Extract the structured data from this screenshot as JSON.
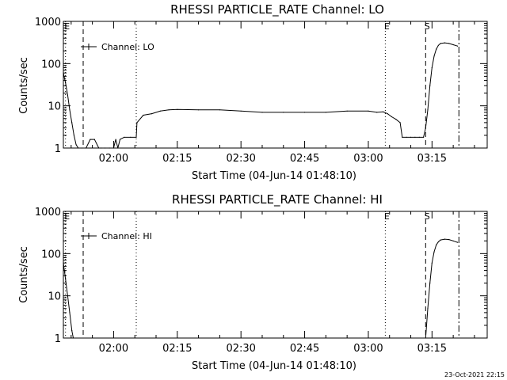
{
  "chart_data": [
    {
      "type": "line",
      "title": "RHESSI PARTICLE_RATE Channel: LO",
      "xlabel": "Start Time (04-Jun-14 01:48:10)",
      "ylabel": "Counts/sec",
      "ylog": true,
      "ylim": [
        1,
        1000
      ],
      "yticks": [
        "1",
        "10",
        "100",
        "1000"
      ],
      "xlim": [
        "01:48:10",
        "03:28:00"
      ],
      "xticks": [
        "02:00",
        "02:15",
        "02:30",
        "02:45",
        "03:00",
        "03:15"
      ],
      "legend": {
        "label": "Channel: LO",
        "position": "top-left"
      },
      "markers": [
        {
          "label": "E",
          "time": "01:48:40",
          "style": "dotted"
        },
        {
          "label": "",
          "time": "01:52:50",
          "style": "dashed"
        },
        {
          "label": "",
          "time": "02:05:20",
          "style": "dotted"
        },
        {
          "label": "E",
          "time": "03:04:00",
          "style": "dotted"
        },
        {
          "label": "S",
          "time": "03:13:30",
          "style": "dashed"
        },
        {
          "label": "",
          "time": "03:21:20",
          "style": "dashdot"
        }
      ],
      "series": [
        {
          "x": [
            "01:48:10",
            "01:48:40",
            "01:49:10",
            "01:49:40",
            "01:50:10",
            "01:50:40",
            "01:51:10",
            "01:51:40",
            "01:52:30",
            "01:53:30",
            "01:54:30",
            "01:55:30",
            "01:56:30",
            "01:57:00",
            "01:58:00",
            "01:59:00",
            "02:00:00",
            "02:00:30",
            "02:01:00",
            "02:01:30",
            "02:02:30",
            "02:04:00",
            "02:05:20",
            "02:05:30",
            "02:07:00",
            "02:09:00",
            "02:11:00",
            "02:13:00",
            "02:15:00",
            "02:20:00",
            "02:25:00",
            "02:30:00",
            "02:35:00",
            "02:40:00",
            "02:45:00",
            "02:50:00",
            "02:55:00",
            "03:00:00",
            "03:02:00",
            "03:03:30",
            "03:04:30",
            "03:05:30",
            "03:06:30",
            "03:07:30",
            "03:08:00",
            "03:09:00",
            "03:10:00",
            "03:11:00",
            "03:12:00",
            "03:13:00",
            "03:13:30",
            "03:14:00",
            "03:14:30",
            "03:15:00",
            "03:15:30",
            "03:16:00",
            "03:16:30",
            "03:17:00",
            "03:18:00",
            "03:19:00",
            "03:20:00",
            "03:21:00"
          ],
          "values": [
            60,
            35,
            18,
            8,
            4,
            2,
            1.2,
            1,
            1,
            1,
            1.6,
            1.6,
            1,
            1,
            1,
            1,
            1,
            1.6,
            1,
            1.6,
            1.8,
            1.8,
            1.8,
            4,
            6,
            6.5,
            7.5,
            8,
            8.2,
            8,
            8,
            7.5,
            7,
            7,
            7,
            7,
            7.5,
            7.5,
            7,
            7.2,
            6.5,
            5.5,
            4.8,
            4,
            1.8,
            1.8,
            1.8,
            1.8,
            1.8,
            1.8,
            3,
            8,
            30,
            80,
            150,
            220,
            270,
            300,
            310,
            300,
            280,
            260
          ]
        }
      ]
    },
    {
      "type": "line",
      "title": "RHESSI PARTICLE_RATE Channel: HI",
      "xlabel": "Start Time (04-Jun-14 01:48:10)",
      "ylabel": "Counts/sec",
      "ylog": true,
      "ylim": [
        1,
        1000
      ],
      "yticks": [
        "1",
        "10",
        "100",
        "1000"
      ],
      "xlim": [
        "01:48:10",
        "03:28:00"
      ],
      "xticks": [
        "02:00",
        "02:15",
        "02:30",
        "02:45",
        "03:00",
        "03:15"
      ],
      "legend": {
        "label": "Channel: HI",
        "position": "top-left"
      },
      "markers": [
        {
          "label": "E",
          "time": "01:48:40",
          "style": "dotted"
        },
        {
          "label": "",
          "time": "01:52:50",
          "style": "dashed"
        },
        {
          "label": "",
          "time": "02:05:20",
          "style": "dotted"
        },
        {
          "label": "E",
          "time": "03:04:00",
          "style": "dotted"
        },
        {
          "label": "S",
          "time": "03:13:30",
          "style": "dashed"
        },
        {
          "label": "",
          "time": "03:21:20",
          "style": "dashdot"
        }
      ],
      "series": [
        {
          "x": [
            "01:48:10",
            "01:48:40",
            "01:49:10",
            "01:49:40",
            "01:50:10",
            "01:50:30",
            "03:13:30",
            "03:14:00",
            "03:14:30",
            "03:15:00",
            "03:15:30",
            "03:16:00",
            "03:16:30",
            "03:17:00",
            "03:18:00",
            "03:19:00",
            "03:20:00",
            "03:21:00"
          ],
          "values": [
            60,
            25,
            10,
            4,
            1.5,
            1,
            1,
            5,
            20,
            60,
            110,
            160,
            190,
            210,
            220,
            215,
            200,
            185
          ]
        }
      ]
    }
  ],
  "footer": {
    "timestamp": "23-Oct-2021 22:15"
  }
}
